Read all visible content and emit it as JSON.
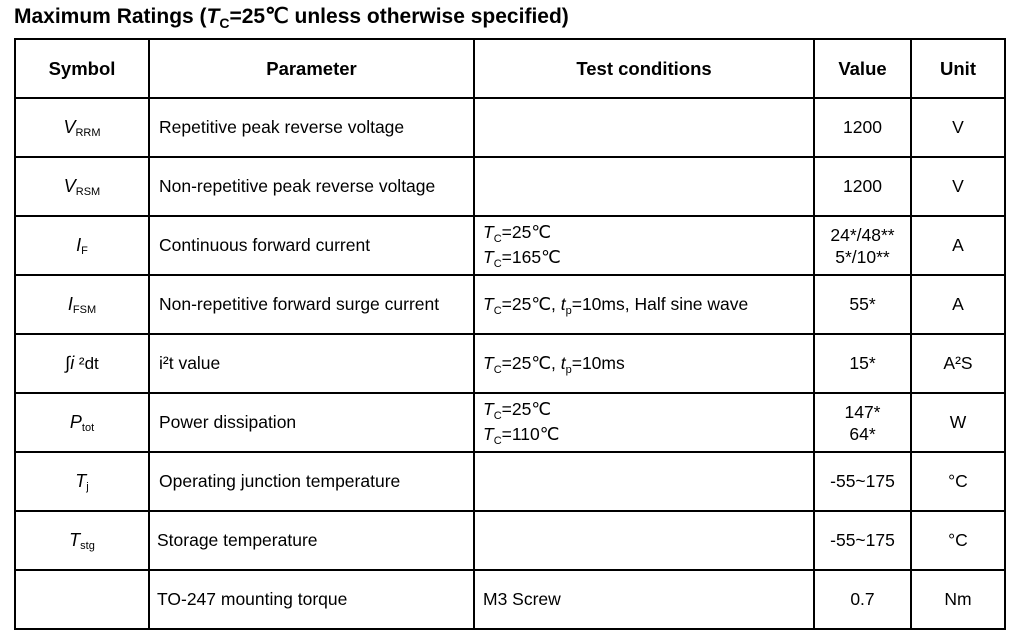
{
  "title": {
    "prefix": "Maximum Ratings (",
    "var": "T",
    "var_sub": "C",
    "suffix": "=25℃ unless otherwise specified)"
  },
  "headers": {
    "symbol": "Symbol",
    "parameter": "Parameter",
    "conditions": "Test conditions",
    "value": "Value",
    "unit": "Unit"
  },
  "rows": [
    {
      "sym": "V",
      "sym_sub": "RRM",
      "param": "Repetitive peak reverse voltage",
      "value": "1200",
      "unit": "V"
    },
    {
      "sym": "V",
      "sym_sub": "RSM",
      "param": "Non-repetitive peak reverse voltage",
      "value": "1200",
      "unit": "V"
    },
    {
      "sym": "I",
      "sym_sub": "F",
      "param": "Continuous forward current",
      "c1_var": "T",
      "c1_sub": "C",
      "c1_text": "=25℃",
      "c2_var": "T",
      "c2_sub": "C",
      "c2_text": "=165℃",
      "value1": "24*/48**",
      "value2": "5*/10**",
      "unit": "A"
    },
    {
      "sym": "I",
      "sym_sub": "FSM",
      "param": "Non-repetitive forward surge current",
      "c_var": "T",
      "c_sub": "C",
      "c_mid": "=25℃, ",
      "c_var2": "t",
      "c_sub2": "p",
      "c_end": "=10ms, Half sine wave",
      "value": "55*",
      "unit": "A"
    },
    {
      "sym_int": "∫",
      "sym_i": "i",
      "sym_rest": " ²dt",
      "param": "i²t value",
      "c_var": "T",
      "c_sub": "C",
      "c_mid": "=25℃, ",
      "c_var2": "t",
      "c_sub2": "p",
      "c_end": "=10ms",
      "value": "15*",
      "unit": "A²S"
    },
    {
      "sym": "P",
      "sym_sub": "tot",
      "param": "Power dissipation",
      "c1_var": "T",
      "c1_sub": "C",
      "c1_text": "=25℃",
      "c2_var": "T",
      "c2_sub": "C",
      "c2_text": "=110℃",
      "value1": "147*",
      "value2": "64*",
      "unit": "W"
    },
    {
      "sym": "T",
      "sym_sub": "j",
      "param": "Operating junction temperature",
      "value": "-55~175",
      "unit": "°C"
    },
    {
      "sym": "T",
      "sym_sub": "stg",
      "param": "Storage temperature",
      "value": "-55~175",
      "unit": "°C"
    },
    {
      "param": "TO-247 mounting torque",
      "cond": "M3 Screw",
      "value": "0.7",
      "unit": "Nm"
    }
  ]
}
